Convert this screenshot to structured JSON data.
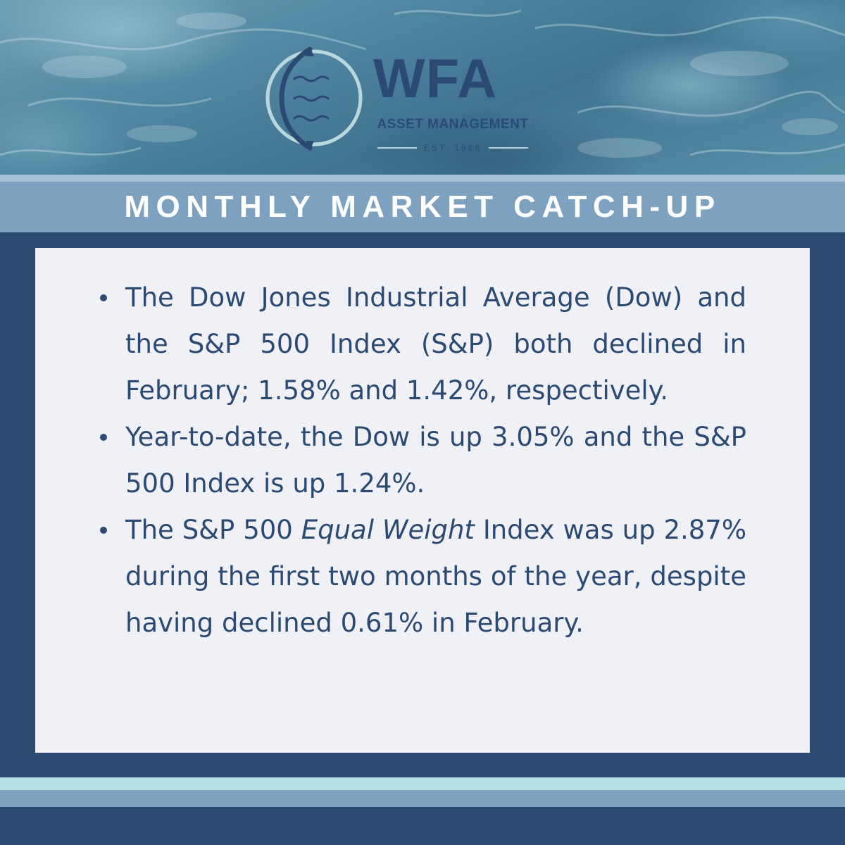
{
  "brand": {
    "name": "WFA",
    "subtitle": "ASSET MANAGEMENT",
    "established": "EST. 1986"
  },
  "banner": {
    "title": "MONTHLY MARKET CATCH-UP"
  },
  "bullets": [
    {
      "text": "The Dow Jones Industrial Average (Dow) and the S&P 500 Index (S&P) both declined in February; 1.58% and 1.42%, respectively."
    },
    {
      "text": "Year-to-date, the Dow is up 3.05% and the S&P 500 Index is up 1.24%."
    },
    {
      "text_before": "The S&P 500 ",
      "text_italic": "Equal Weight",
      "text_after": " Index was up 2.87% during the first two months of the year, despite having declined 0.61% in February."
    }
  ],
  "colors": {
    "navy": "#294a6e",
    "brand_blue": "#2b4a73",
    "band_blue": "#7fa1c0",
    "light_band": "#a7c2d6",
    "aqua": "#b5e0e4",
    "panel": "#f0f1f6"
  },
  "icons": {
    "logo_emblem": "compass-circle-with-waves-icon"
  }
}
